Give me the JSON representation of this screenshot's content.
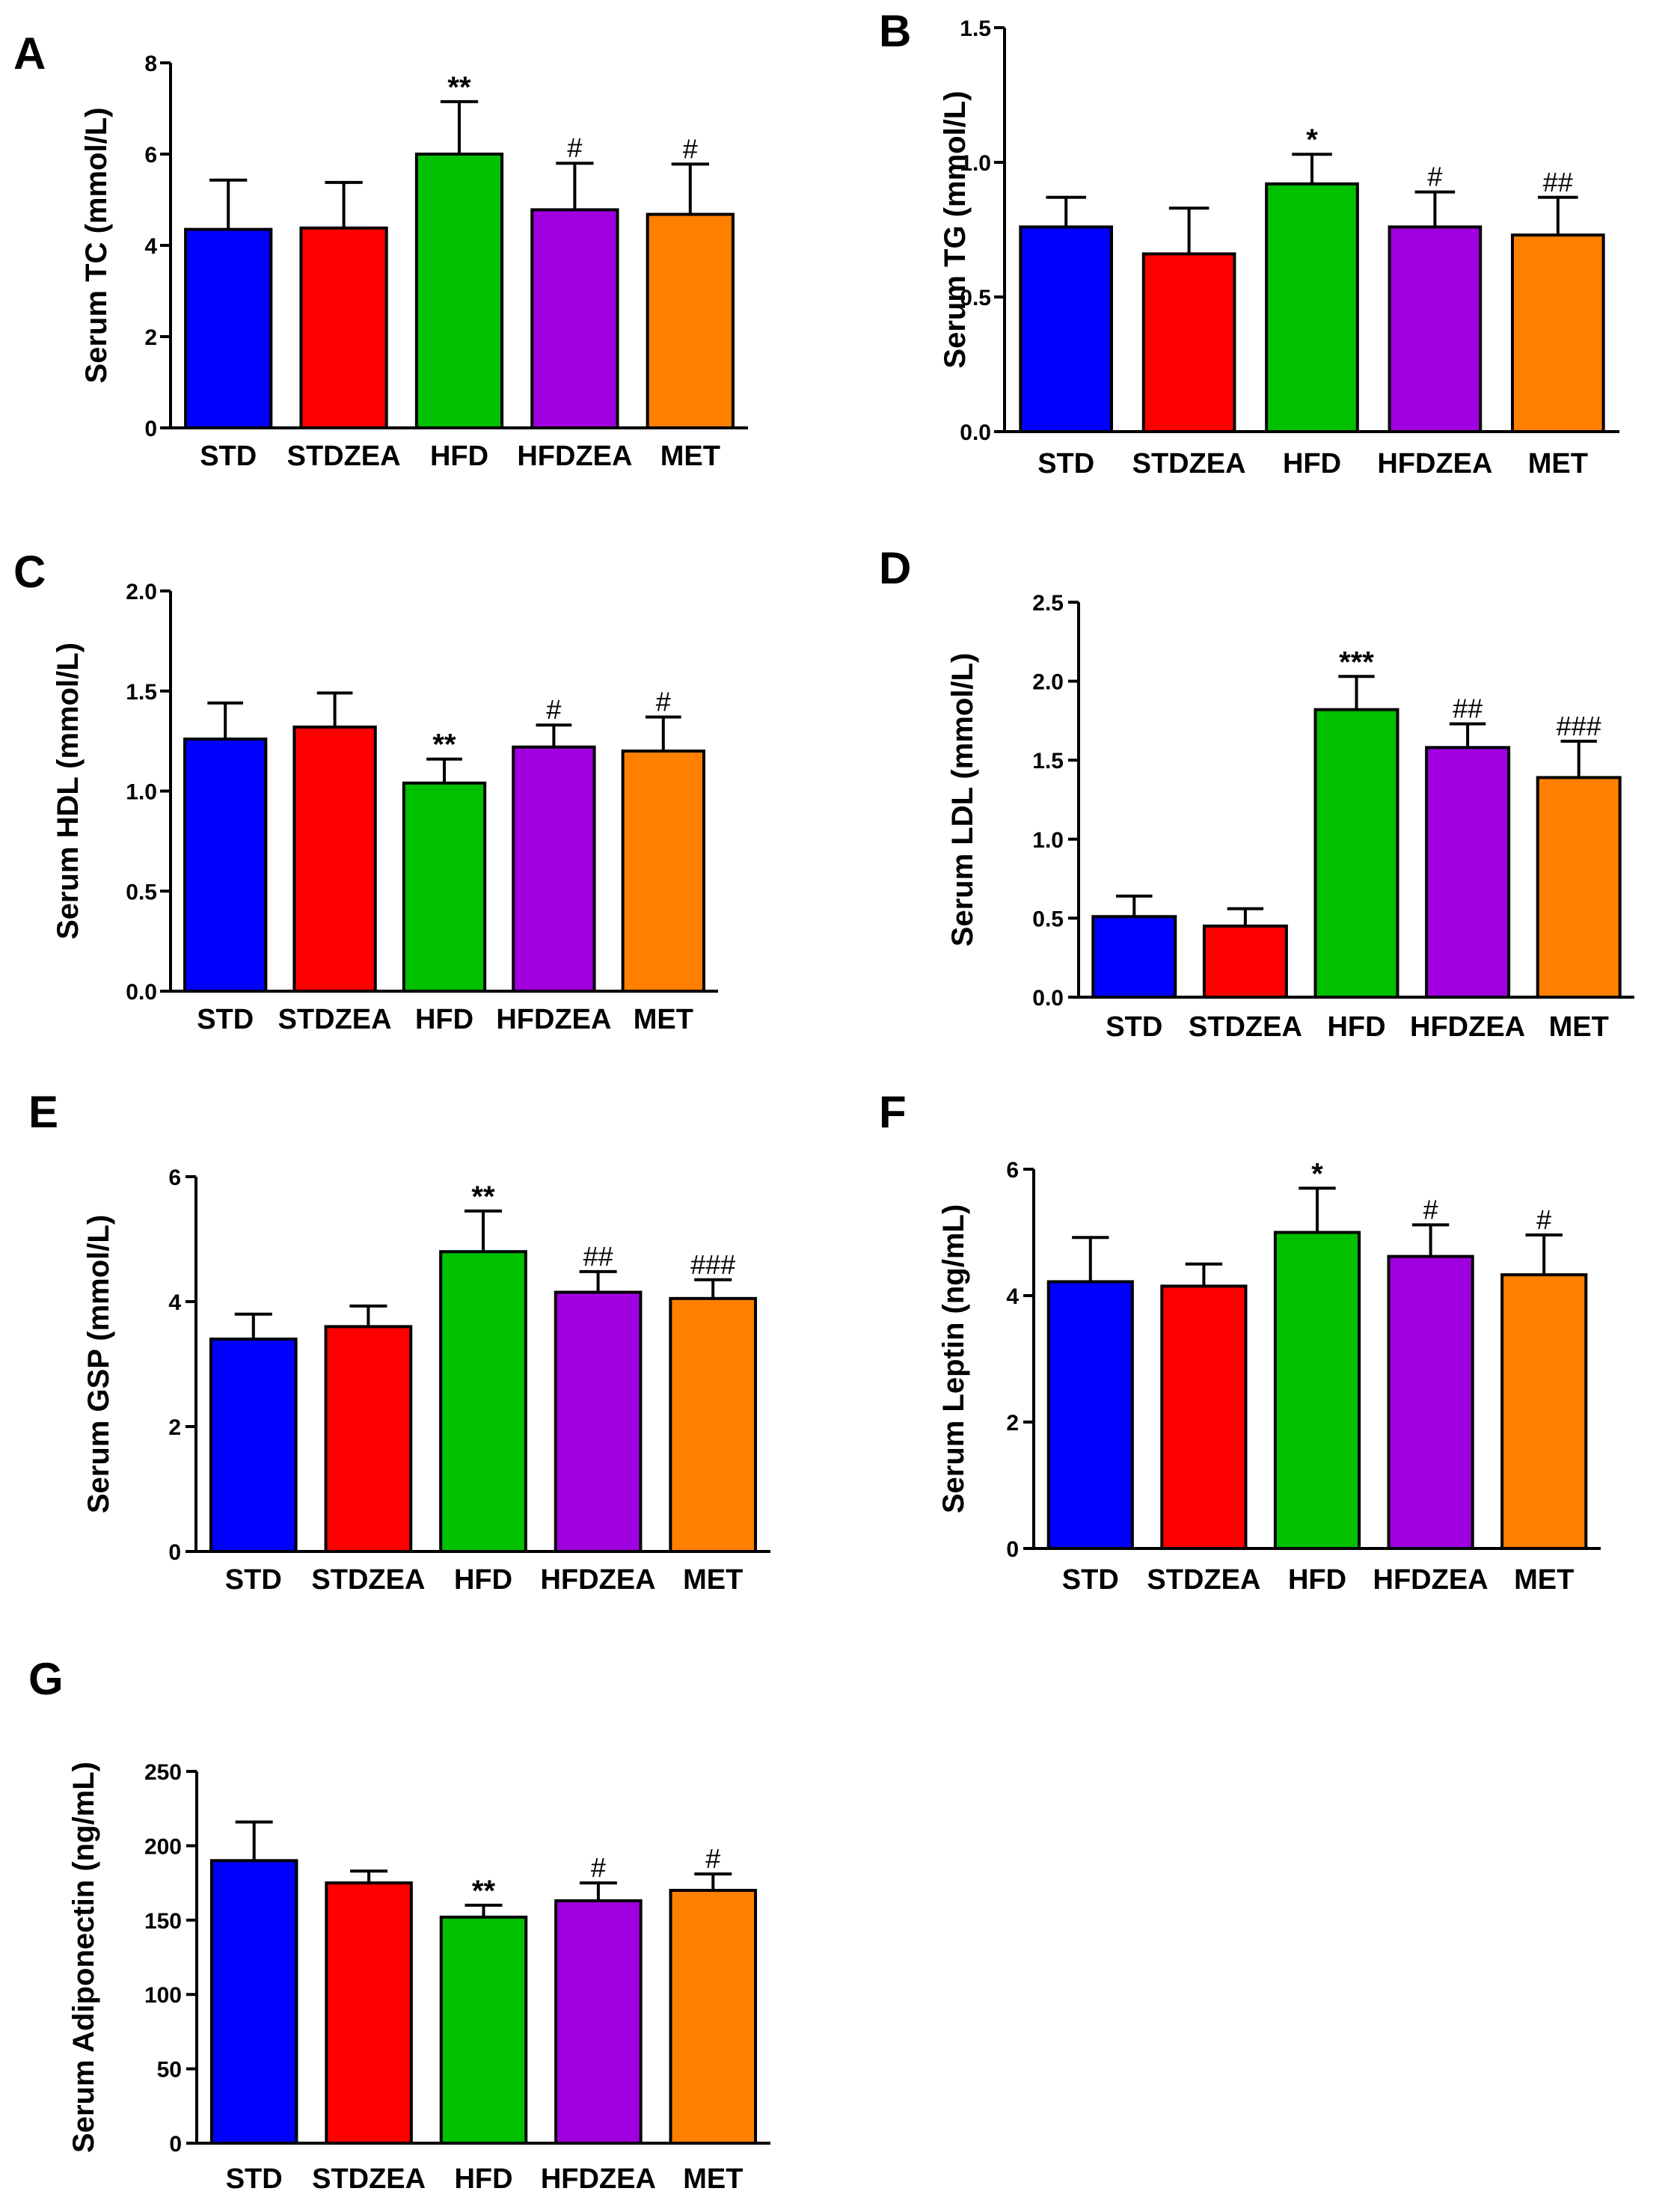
{
  "chart_data": [
    {
      "panel": "A",
      "type": "bar",
      "ylabel": "Serum TC (mmol/L)",
      "ylim": [
        0,
        8
      ],
      "yticks": [
        "0",
        "2",
        "4",
        "6",
        "8"
      ],
      "categories": [
        "STD",
        "STDZEA",
        "HFD",
        "HFDZEA",
        "MET"
      ],
      "values": [
        4.35,
        4.38,
        6.0,
        4.78,
        4.68
      ],
      "errors": [
        1.08,
        1.0,
        1.15,
        1.02,
        1.1
      ],
      "significance": [
        "",
        "",
        "**",
        "#",
        "#"
      ],
      "colors": [
        "#0000ff",
        "#ff0000",
        "#00c000",
        "#a000e0",
        "#ff8000"
      ]
    },
    {
      "panel": "B",
      "type": "bar",
      "ylabel": "Serum TG (mmol/L)",
      "ylim": [
        0,
        1.5
      ],
      "yticks": [
        "0.0",
        "0.5",
        "1.0",
        "1.5"
      ],
      "categories": [
        "STD",
        "STDZEA",
        "HFD",
        "HFDZEA",
        "MET"
      ],
      "values": [
        0.76,
        0.66,
        0.92,
        0.76,
        0.73
      ],
      "errors": [
        0.11,
        0.17,
        0.11,
        0.13,
        0.14
      ],
      "significance": [
        "",
        "",
        "*",
        "#",
        "##"
      ],
      "colors": [
        "#0000ff",
        "#ff0000",
        "#00c000",
        "#a000e0",
        "#ff8000"
      ]
    },
    {
      "panel": "C",
      "type": "bar",
      "ylabel": "Serum HDL (mmol/L)",
      "ylim": [
        0,
        2.0
      ],
      "yticks": [
        "0.0",
        "0.5",
        "1.0",
        "1.5",
        "2.0"
      ],
      "categories": [
        "STD",
        "STDZEA",
        "HFD",
        "HFDZEA",
        "MET"
      ],
      "values": [
        1.26,
        1.32,
        1.04,
        1.22,
        1.2
      ],
      "errors": [
        0.18,
        0.17,
        0.12,
        0.11,
        0.17
      ],
      "significance": [
        "",
        "",
        "**",
        "#",
        "#"
      ],
      "colors": [
        "#0000ff",
        "#ff0000",
        "#00c000",
        "#a000e0",
        "#ff8000"
      ]
    },
    {
      "panel": "D",
      "type": "bar",
      "ylabel": "Serum LDL (mmol/L)",
      "ylim": [
        0,
        2.5
      ],
      "yticks": [
        "0.0",
        "0.5",
        "1.0",
        "1.5",
        "2.0",
        "2.5"
      ],
      "categories": [
        "STD",
        "STDZEA",
        "HFD",
        "HFDZEA",
        "MET"
      ],
      "values": [
        0.51,
        0.45,
        1.82,
        1.58,
        1.39
      ],
      "errors": [
        0.13,
        0.11,
        0.21,
        0.15,
        0.23
      ],
      "significance": [
        "",
        "",
        "***",
        "##",
        "###"
      ],
      "colors": [
        "#0000ff",
        "#ff0000",
        "#00c000",
        "#a000e0",
        "#ff8000"
      ]
    },
    {
      "panel": "E",
      "type": "bar",
      "ylabel": "Serum GSP (mmol/L)",
      "ylim": [
        0,
        6
      ],
      "yticks": [
        "0",
        "2",
        "4",
        "6"
      ],
      "categories": [
        "STD",
        "STDZEA",
        "HFD",
        "HFDZEA",
        "MET"
      ],
      "values": [
        3.4,
        3.6,
        4.8,
        4.15,
        4.05
      ],
      "errors": [
        0.4,
        0.33,
        0.65,
        0.33,
        0.3
      ],
      "significance": [
        "",
        "",
        "**",
        "##",
        "###"
      ],
      "colors": [
        "#0000ff",
        "#ff0000",
        "#00c000",
        "#a000e0",
        "#ff8000"
      ]
    },
    {
      "panel": "F",
      "type": "bar",
      "ylabel": "Serum Leptin (ng/mL)",
      "ylim": [
        0,
        6
      ],
      "yticks": [
        "0",
        "2",
        "4",
        "6"
      ],
      "categories": [
        "STD",
        "STDZEA",
        "HFD",
        "HFDZEA",
        "MET"
      ],
      "values": [
        4.22,
        4.15,
        5.0,
        4.62,
        4.33
      ],
      "errors": [
        0.7,
        0.35,
        0.7,
        0.5,
        0.63
      ],
      "significance": [
        "",
        "",
        "*",
        "#",
        "#"
      ],
      "colors": [
        "#0000ff",
        "#ff0000",
        "#00c000",
        "#a000e0",
        "#ff8000"
      ]
    },
    {
      "panel": "G",
      "type": "bar",
      "ylabel": "Serum Adiponectin (ng/mL)",
      "ylim": [
        0,
        250
      ],
      "yticks": [
        "0",
        "50",
        "100",
        "150",
        "200",
        "250"
      ],
      "categories": [
        "STD",
        "STDZEA",
        "HFD",
        "HFDZEA",
        "MET"
      ],
      "values": [
        190,
        175,
        152,
        163,
        170
      ],
      "errors": [
        26,
        8,
        8,
        12,
        11
      ],
      "significance": [
        "",
        "",
        "**",
        "#",
        "#"
      ],
      "colors": [
        "#0000ff",
        "#ff0000",
        "#00c000",
        "#a000e0",
        "#ff8000"
      ]
    }
  ]
}
